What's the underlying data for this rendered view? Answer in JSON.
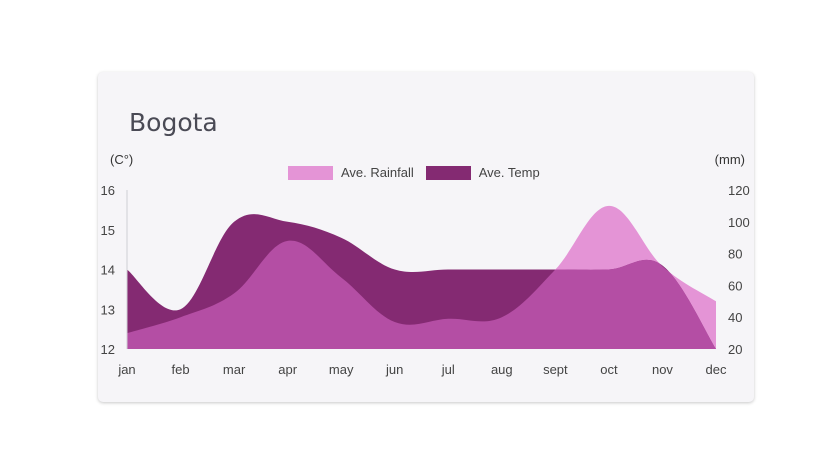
{
  "card": {
    "title": "Bogota"
  },
  "chart_data": {
    "type": "area",
    "title": "Bogota",
    "categories": [
      "jan",
      "feb",
      "mar",
      "apr",
      "may",
      "jun",
      "jul",
      "aug",
      "sept",
      "oct",
      "nov",
      "dec"
    ],
    "y_left": {
      "label": "(C°)",
      "ticks": [
        "16",
        "15",
        "14",
        "13",
        "12"
      ],
      "range": [
        12,
        16
      ]
    },
    "y_right": {
      "label": "(mm)",
      "ticks": [
        "120",
        "100",
        "80",
        "60",
        "40",
        "20"
      ],
      "range": [
        20,
        120
      ]
    },
    "legend_position": "top-center",
    "series": [
      {
        "name": "Ave. Rainfall",
        "axis": "right",
        "color": "#e494d6",
        "values": [
          30,
          40,
          55,
          88,
          65,
          37,
          39,
          40,
          70,
          110,
          72,
          50
        ]
      },
      {
        "name": "Ave. Temp",
        "axis": "left",
        "color": "#842a72",
        "values": [
          14,
          13,
          15.2,
          15.2,
          14.8,
          14,
          14,
          14,
          14,
          14,
          14.1,
          12
        ]
      }
    ],
    "overlap_color": "#b44ea4"
  }
}
